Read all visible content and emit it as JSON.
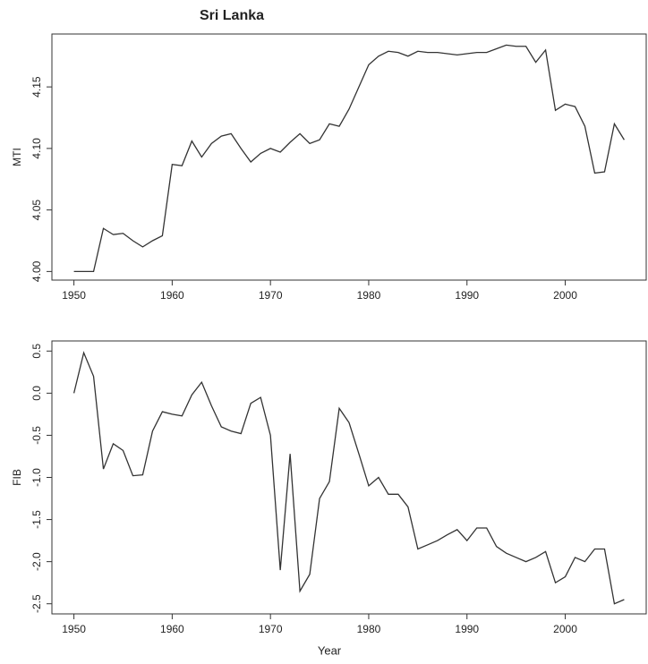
{
  "chart_data": [
    {
      "type": "line",
      "title": "Sri Lanka",
      "ylabel": "MTI",
      "color": "#333333",
      "x": [
        1950,
        1951,
        1952,
        1953,
        1954,
        1955,
        1956,
        1957,
        1958,
        1959,
        1960,
        1961,
        1962,
        1963,
        1964,
        1965,
        1966,
        1967,
        1968,
        1969,
        1970,
        1971,
        1972,
        1973,
        1974,
        1975,
        1976,
        1977,
        1978,
        1979,
        1980,
        1981,
        1982,
        1983,
        1984,
        1985,
        1986,
        1987,
        1988,
        1989,
        1990,
        1991,
        1992,
        1993,
        1994,
        1995,
        1996,
        1997,
        1998,
        1999,
        2000,
        2001,
        2002,
        2003,
        2004,
        2005,
        2006
      ],
      "values": [
        4.0,
        4.0,
        4.0,
        4.035,
        4.03,
        4.031,
        4.025,
        4.02,
        4.025,
        4.029,
        4.087,
        4.086,
        4.106,
        4.093,
        4.104,
        4.11,
        4.112,
        4.1,
        4.089,
        4.096,
        4.1,
        4.097,
        4.105,
        4.112,
        4.104,
        4.107,
        4.12,
        4.118,
        4.132,
        4.15,
        4.168,
        4.175,
        4.179,
        4.178,
        4.175,
        4.179,
        4.178,
        4.178,
        4.177,
        4.176,
        4.177,
        4.178,
        4.178,
        4.181,
        4.184,
        4.183,
        4.183,
        4.17,
        4.18,
        4.131,
        4.136,
        4.134,
        4.118,
        4.08,
        4.081,
        4.12,
        4.107
      ],
      "xlim": [
        1947.76,
        2008.24
      ],
      "xticks": [
        1950,
        1960,
        1970,
        1980,
        1990,
        2000
      ],
      "ylim": [
        3.993,
        4.193
      ],
      "yticks": [
        {
          "value": 4.0,
          "label": "4.00"
        },
        4.05,
        {
          "value": 4.1,
          "label": "4.10"
        },
        4.15
      ]
    },
    {
      "type": "line",
      "xlabel": "Year",
      "ylabel": "FIB",
      "color": "#333333",
      "x": [
        1950,
        1951,
        1952,
        1953,
        1954,
        1955,
        1956,
        1957,
        1958,
        1959,
        1960,
        1961,
        1962,
        1963,
        1964,
        1965,
        1966,
        1967,
        1968,
        1969,
        1970,
        1971,
        1972,
        1973,
        1974,
        1975,
        1976,
        1977,
        1978,
        1979,
        1980,
        1981,
        1982,
        1983,
        1984,
        1985,
        1986,
        1987,
        1988,
        1989,
        1990,
        1991,
        1992,
        1993,
        1994,
        1995,
        1996,
        1997,
        1998,
        1999,
        2000,
        2001,
        2002,
        2003,
        2004,
        2005,
        2006
      ],
      "values": [
        0.0,
        0.48,
        0.2,
        -0.9,
        -0.6,
        -0.68,
        -0.98,
        -0.97,
        -0.45,
        -0.22,
        -0.25,
        -0.27,
        -0.02,
        0.13,
        -0.15,
        -0.4,
        -0.45,
        -0.48,
        -0.12,
        -0.05,
        -0.5,
        -2.1,
        -0.72,
        -2.35,
        -2.15,
        -1.25,
        -1.05,
        -0.18,
        -0.35,
        -0.72,
        -1.1,
        -1.0,
        -1.2,
        -1.2,
        -1.35,
        -1.85,
        -1.8,
        -1.75,
        -1.68,
        -1.62,
        -1.75,
        -1.6,
        -1.6,
        -1.82,
        -1.9,
        -1.95,
        -2.0,
        -1.95,
        -1.88,
        -2.25,
        -2.18,
        -1.95,
        -2.0,
        -1.85,
        -1.85,
        -2.5,
        -2.45
      ],
      "xlim": [
        1947.76,
        2008.24
      ],
      "xticks": [
        1950,
        1960,
        1970,
        1980,
        1990,
        2000
      ],
      "ylim": [
        -2.62,
        0.62
      ],
      "yticks": [
        -2.5,
        {
          "value": -2.0,
          "label": "-2.0"
        },
        -1.5,
        {
          "value": -1.0,
          "label": "-1.0"
        },
        -0.5,
        {
          "value": 0.0,
          "label": "0.0"
        },
        0.5
      ]
    }
  ]
}
